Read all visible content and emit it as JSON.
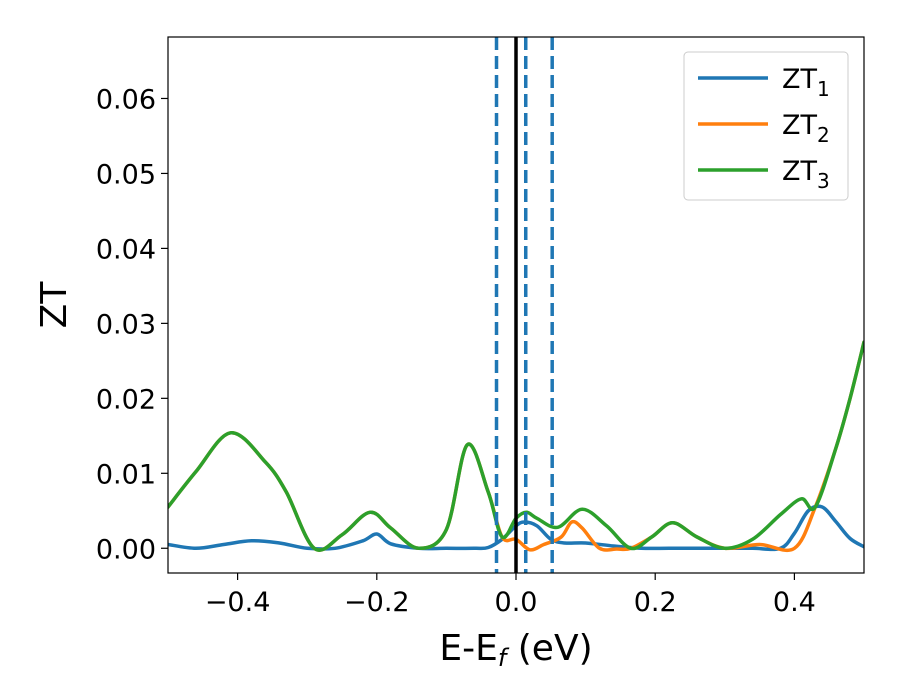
{
  "chart_data": {
    "type": "line",
    "xlabel_main": "E-E",
    "xlabel_sub": "f",
    "xlabel_unit": " (eV)",
    "ylabel": "ZT",
    "xlim": [
      -0.5,
      0.5
    ],
    "ylim": [
      -0.0033,
      0.0682
    ],
    "x_ticks": [
      -0.4,
      -0.2,
      0.0,
      0.2,
      0.4
    ],
    "x_tick_labels": [
      "−0.4",
      "−0.2",
      "0.0",
      "0.2",
      "0.4"
    ],
    "y_ticks": [
      0.0,
      0.01,
      0.02,
      0.03,
      0.04,
      0.05,
      0.06
    ],
    "y_tick_labels": [
      "0.00",
      "0.01",
      "0.02",
      "0.03",
      "0.04",
      "0.05",
      "0.06"
    ],
    "legend_position": "top-right",
    "grid": false,
    "vertical_lines": [
      {
        "x": 0.0,
        "style": "solid",
        "color": "#000000"
      },
      {
        "x": -0.028,
        "style": "dashed",
        "color": "#1f77b4"
      },
      {
        "x": 0.014,
        "style": "dashed",
        "color": "#1f77b4"
      },
      {
        "x": 0.052,
        "style": "dashed",
        "color": "#1f77b4"
      }
    ],
    "series": [
      {
        "name": "ZT",
        "sub": "1",
        "color": "#1f77b4",
        "x": [
          -0.5,
          -0.46,
          -0.42,
          -0.38,
          -0.34,
          -0.3,
          -0.26,
          -0.22,
          -0.2,
          -0.18,
          -0.14,
          -0.1,
          -0.06,
          -0.04,
          -0.02,
          0.0,
          0.012,
          0.03,
          0.05,
          0.07,
          0.1,
          0.14,
          0.18,
          0.22,
          0.26,
          0.3,
          0.34,
          0.38,
          0.4,
          0.42,
          0.44,
          0.46,
          0.48,
          0.5
        ],
        "y": [
          0.0005,
          0.0,
          0.0005,
          0.001,
          0.0007,
          0.0,
          0.0,
          0.001,
          0.0019,
          0.0006,
          0.0,
          0.0,
          0.0,
          0.0001,
          0.0012,
          0.003,
          0.0035,
          0.003,
          0.0012,
          0.0007,
          0.0007,
          0.0003,
          0.0,
          0.0,
          0.0,
          0.0,
          0.0,
          0.0,
          0.002,
          0.005,
          0.0055,
          0.0035,
          0.0013,
          0.0002
        ]
      },
      {
        "name": "ZT",
        "sub": "2",
        "color": "#ff7f0e",
        "x": [
          -0.5,
          -0.46,
          -0.41,
          -0.36,
          -0.33,
          -0.29,
          -0.25,
          -0.21,
          -0.18,
          -0.14,
          -0.1,
          -0.07,
          -0.04,
          -0.02,
          0.0,
          0.02,
          0.04,
          0.065,
          0.08,
          0.095,
          0.12,
          0.145,
          0.165,
          0.195,
          0.225,
          0.26,
          0.3,
          0.35,
          0.4,
          0.43,
          0.46,
          0.48,
          0.5
        ],
        "y": [
          0.0055,
          0.0102,
          0.0154,
          0.0115,
          0.0075,
          0.0,
          0.0018,
          0.0048,
          0.0027,
          0.0,
          0.0025,
          0.0138,
          0.0075,
          0.0015,
          0.0012,
          -0.0002,
          0.0005,
          0.0015,
          0.0035,
          0.0027,
          0.0,
          -0.0001,
          0.0,
          0.0015,
          0.0034,
          0.0015,
          0.0,
          0.0005,
          0.0,
          0.0055,
          0.0135,
          0.02,
          0.0275
        ]
      },
      {
        "name": "ZT",
        "sub": "3",
        "color": "#2ca02c",
        "x": [
          -0.5,
          -0.46,
          -0.41,
          -0.36,
          -0.33,
          -0.29,
          -0.25,
          -0.21,
          -0.18,
          -0.14,
          -0.1,
          -0.07,
          -0.04,
          -0.02,
          0.0,
          0.015,
          0.03,
          0.06,
          0.095,
          0.13,
          0.165,
          0.195,
          0.225,
          0.26,
          0.3,
          0.34,
          0.38,
          0.41,
          0.43,
          0.46,
          0.48,
          0.5
        ],
        "y": [
          0.0055,
          0.0102,
          0.0154,
          0.0115,
          0.0075,
          0.0,
          0.0018,
          0.0048,
          0.0027,
          0.0,
          0.0025,
          0.0138,
          0.0075,
          0.0015,
          0.004,
          0.0048,
          0.004,
          0.0028,
          0.0052,
          0.003,
          0.0,
          0.0015,
          0.0034,
          0.0015,
          0.0,
          0.0012,
          0.0045,
          0.0066,
          0.0055,
          0.0135,
          0.02,
          0.0275
        ]
      }
    ]
  }
}
